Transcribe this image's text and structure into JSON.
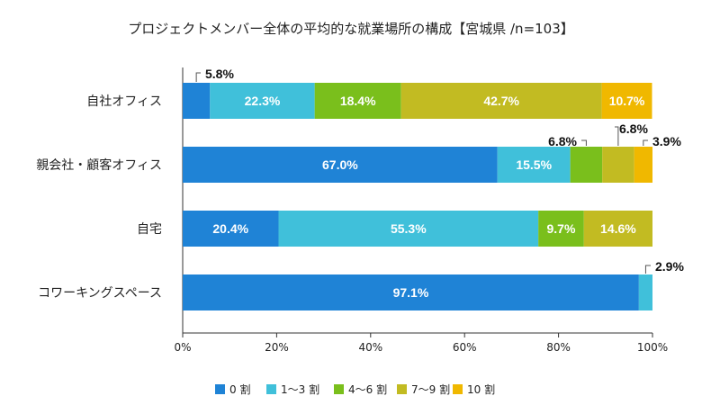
{
  "chart_data": {
    "type": "bar",
    "orientation": "horizontal",
    "stacked": true,
    "title": "プロジェクトメンバー全体の平均的な就業場所の構成【宮城県 /n=103】",
    "categories": [
      "自社オフィス",
      "親会社・顧客オフィス",
      "自宅",
      "コワーキングスペース"
    ],
    "series": [
      {
        "name": "0 割",
        "color": "#1f83d6",
        "values": [
          5.8,
          67.0,
          20.4,
          97.1
        ]
      },
      {
        "name": "1〜3 割",
        "color": "#40c0da",
        "values": [
          22.3,
          15.5,
          55.3,
          2.9
        ]
      },
      {
        "name": "4〜6 割",
        "color": "#7abf1c",
        "values": [
          18.4,
          6.8,
          9.7,
          0
        ]
      },
      {
        "name": "7〜9 割",
        "color": "#c2bb22",
        "values": [
          42.7,
          6.8,
          14.6,
          0
        ]
      },
      {
        "name": "10 割",
        "color": "#f0b800",
        "values": [
          10.7,
          3.9,
          0,
          0
        ]
      }
    ],
    "xlim": [
      0,
      100
    ],
    "xticks": [
      "0%",
      "20%",
      "40%",
      "60%",
      "80%",
      "100%"
    ],
    "grid": false,
    "legend_position": "bottom",
    "bar_labels": [
      [
        "5.8%",
        "22.3%",
        "18.4%",
        "42.7%",
        "10.7%"
      ],
      [
        "67.0%",
        "15.5%",
        "6.8%",
        "6.8%",
        "3.9%"
      ],
      [
        "20.4%",
        "55.3%",
        "9.7%",
        "14.6%",
        ""
      ],
      [
        "97.1%",
        "2.9%",
        "",
        "",
        ""
      ]
    ]
  }
}
